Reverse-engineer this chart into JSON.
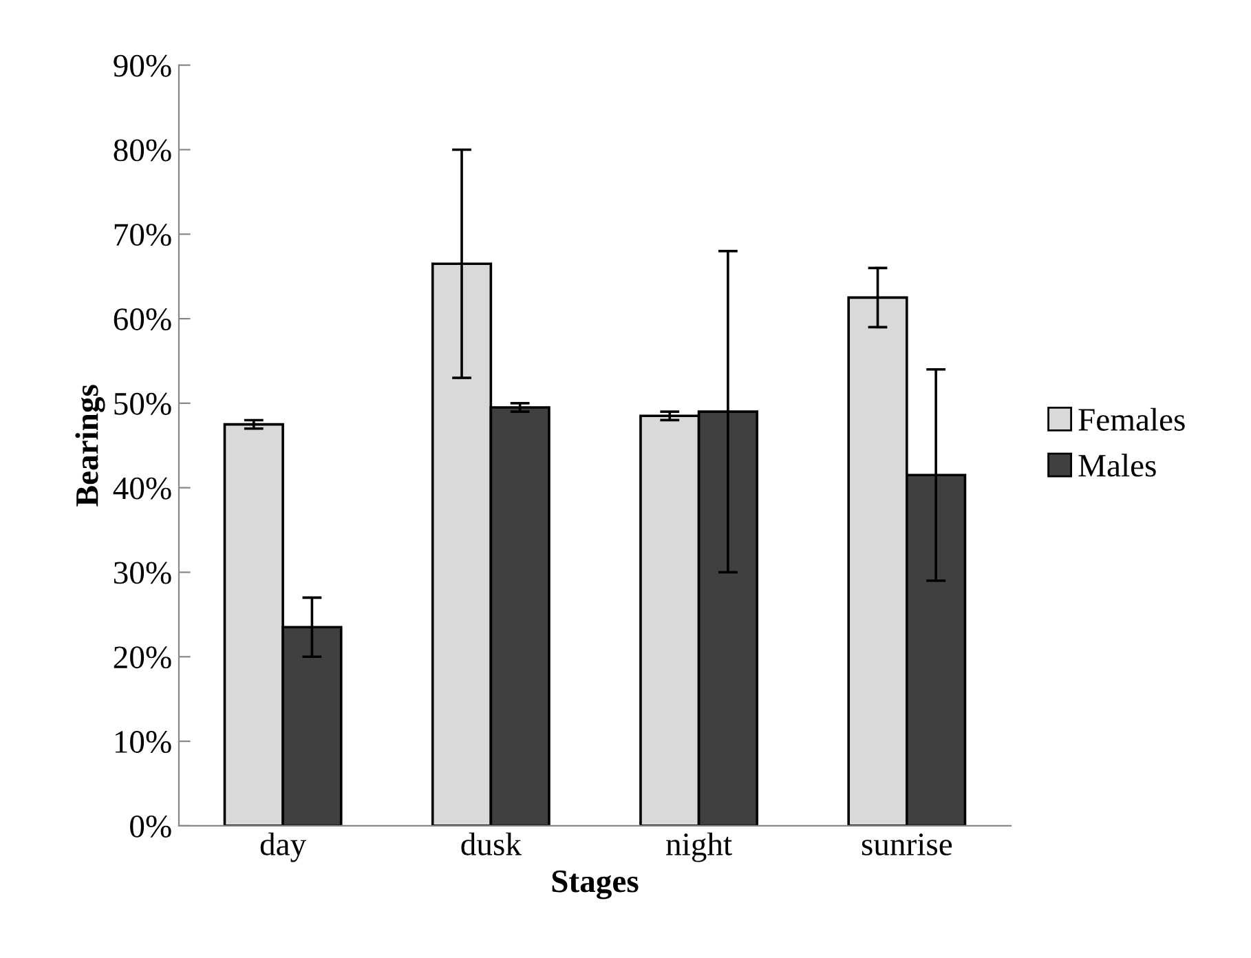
{
  "chart_data": {
    "type": "bar",
    "xlabel": "Stages",
    "ylabel": "Bearings",
    "categories": [
      "day",
      "dusk",
      "night",
      "sunrise"
    ],
    "series": [
      {
        "name": "Females",
        "color": "#d9d9d9",
        "values": [
          47.5,
          66.5,
          48.5,
          62.5
        ],
        "errors": [
          0.5,
          13.5,
          0.5,
          3.5
        ]
      },
      {
        "name": "Males",
        "color": "#404040",
        "values": [
          23.5,
          49.5,
          49,
          41.5
        ],
        "errors": [
          3.5,
          0.5,
          19,
          12.5
        ]
      }
    ],
    "ylim": [
      0,
      90
    ],
    "yticks": [
      {
        "value": 0,
        "label": "0%"
      },
      {
        "value": 10,
        "label": "10%"
      },
      {
        "value": 20,
        "label": "20%"
      },
      {
        "value": 30,
        "label": "30%"
      },
      {
        "value": 40,
        "label": "40%"
      },
      {
        "value": 50,
        "label": "50%"
      },
      {
        "value": 60,
        "label": "60%"
      },
      {
        "value": 70,
        "label": "70%"
      },
      {
        "value": 80,
        "label": "80%"
      },
      {
        "value": 90,
        "label": "90%"
      }
    ],
    "grid": false,
    "legend": "right"
  }
}
